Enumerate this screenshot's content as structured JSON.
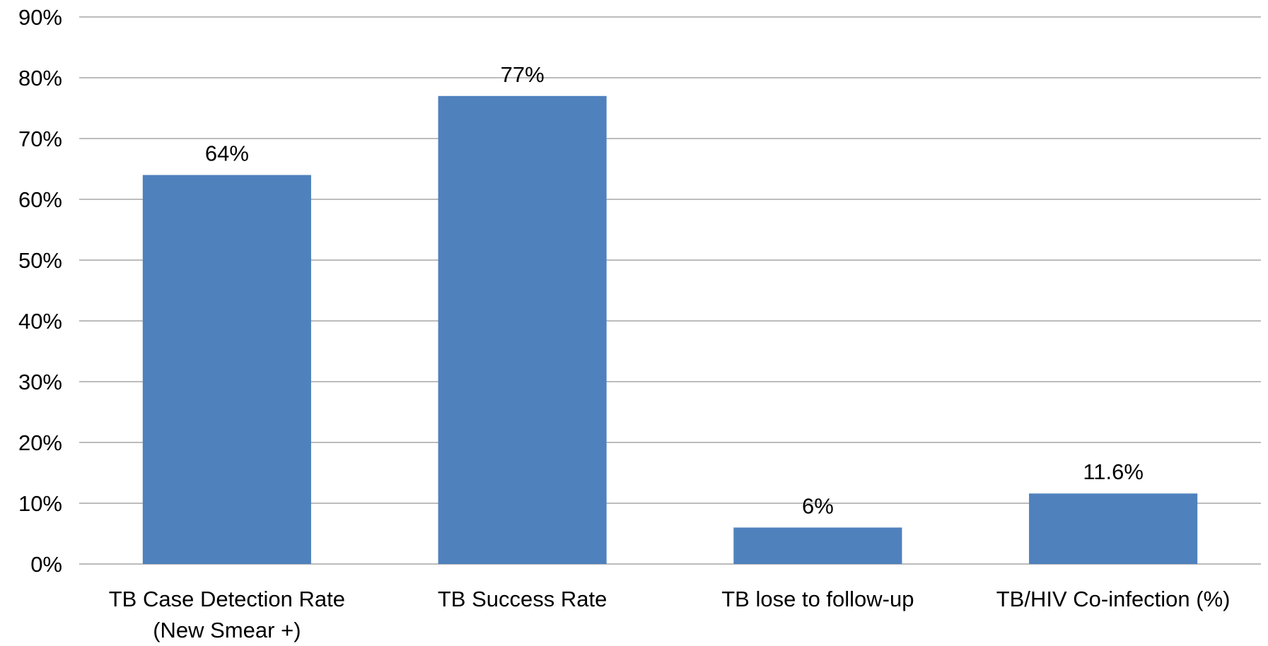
{
  "chart_data": {
    "type": "bar",
    "title": "",
    "xlabel": "",
    "ylabel": "",
    "categories": [
      [
        "TB Case Detection Rate",
        "(New Smear +)"
      ],
      [
        "TB Success Rate"
      ],
      [
        "TB lose to follow-up"
      ],
      [
        "TB/HIV Co-infection (%)"
      ]
    ],
    "values": [
      64,
      77,
      6,
      11.6
    ],
    "data_labels": [
      "64%",
      "77%",
      "6%",
      "11.6%"
    ],
    "ylim": [
      0,
      90
    ],
    "yticks": [
      0,
      10,
      20,
      30,
      40,
      50,
      60,
      70,
      80,
      90
    ],
    "ytick_labels": [
      "0%",
      "10%",
      "20%",
      "30%",
      "40%",
      "50%",
      "60%",
      "70%",
      "80%",
      "90%"
    ],
    "grid": true,
    "legend": "none",
    "bar_color": "#4f81bd",
    "grid_color": "#a6a6a6"
  }
}
